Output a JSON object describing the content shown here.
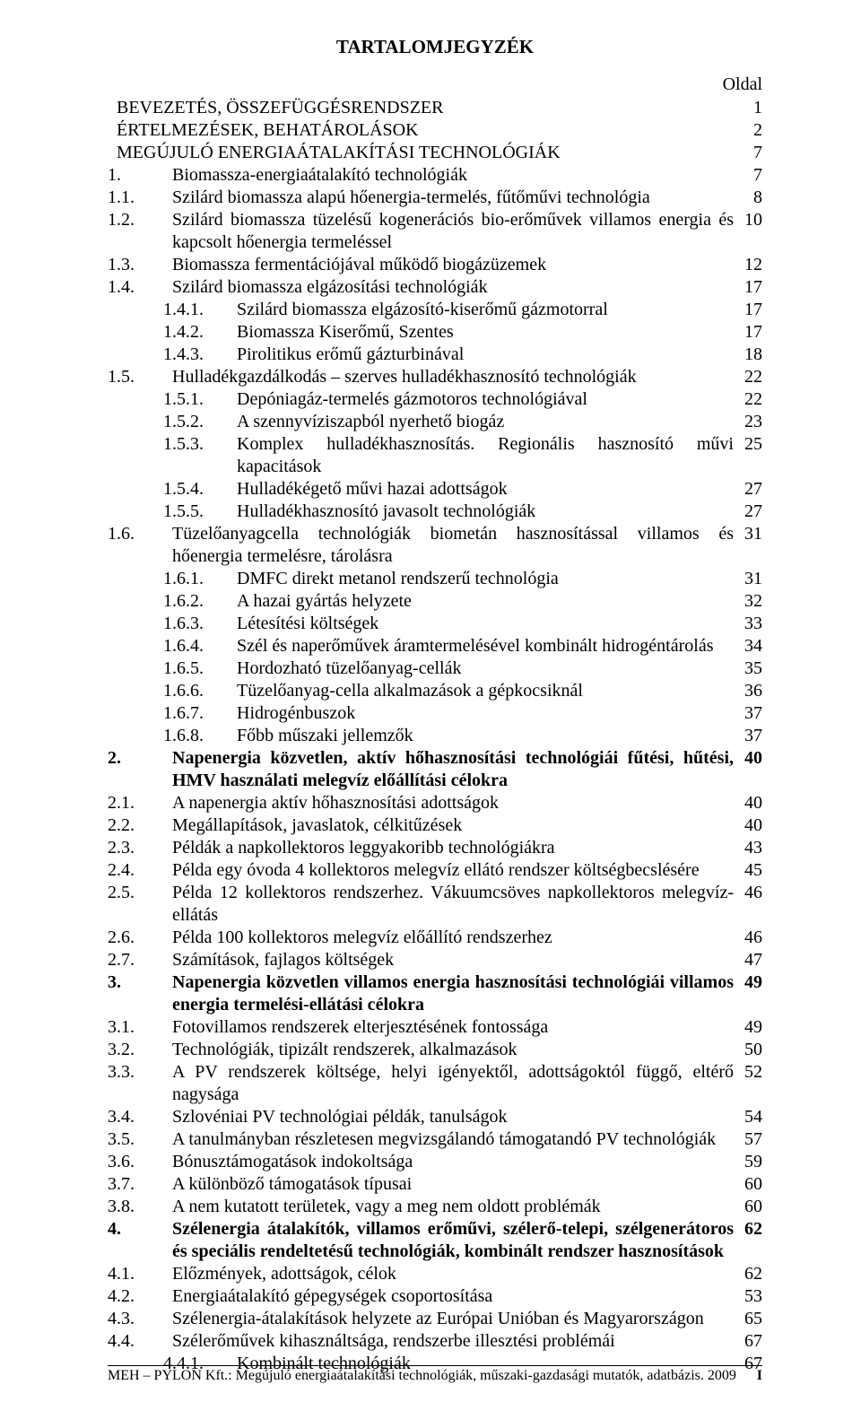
{
  "title": "TARTALOMJEGYZÉK",
  "page_header_label": "Oldal",
  "footer_left": "MEH – PYLON Kft.: Megújuló energiaátalakítási technológiák, műszaki-gazdasági mutatók, adatbázis. 2009",
  "footer_right": "I",
  "entries": [
    {
      "num": "",
      "text": "BEVEZETÉS, ÖSSZEFÜGGÉSRENDSZER",
      "page": "1",
      "indent": 0,
      "bold": false
    },
    {
      "num": "",
      "text": "ÉRTELMEZÉSEK, BEHATÁROLÁSOK",
      "page": "2",
      "indent": 0,
      "bold": false
    },
    {
      "num": "",
      "text": "MEGÚJULÓ ENERGIAÁTALAKÍTÁSI TECHNOLÓGIÁK",
      "page": "7",
      "indent": 0,
      "bold": false
    },
    {
      "num": "1.",
      "text": "Biomassza-energiaátalakító technológiák",
      "page": "7",
      "indent": 1,
      "bold": false
    },
    {
      "num": "1.1.",
      "text": "Szilárd biomassza alapú hőenergia-termelés, fűtőművi technológia",
      "page": "8",
      "indent": 1,
      "bold": false
    },
    {
      "num": "1.2.",
      "text": "Szilárd biomassza tüzelésű kogenerációs bio-erőművek villamos energia és kapcsolt hőener­gia termeléssel",
      "page": "10",
      "indent": 1,
      "bold": false
    },
    {
      "num": "1.3.",
      "text": "Biomassza fermentációjával működő biogázüzemek",
      "page": "12",
      "indent": 1,
      "bold": false
    },
    {
      "num": "1.4.",
      "text": "Szilárd biomassza elgázosítási technológiák",
      "page": "17",
      "indent": 1,
      "bold": false
    },
    {
      "num": "1.4.1.",
      "text": "Szilárd biomassza elgázosító-kiserőmű gázmotorral",
      "page": "17",
      "indent": 2,
      "bold": false
    },
    {
      "num": "1.4.2.",
      "text": "Biomassza Kiserőmű, Szentes",
      "page": "17",
      "indent": 2,
      "bold": false
    },
    {
      "num": "1.4.3.",
      "text": "Pirolitikus erőmű gázturbinával",
      "page": "18",
      "indent": 2,
      "bold": false
    },
    {
      "num": "1.5.",
      "text": "Hulladékgazdálkodás – szerves hulladékhasznosító technológiák",
      "page": "22",
      "indent": 1,
      "bold": false
    },
    {
      "num": "1.5.1.",
      "text": "Depóniagáz-termelés gázmotoros technológiával",
      "page": "22",
      "indent": 2,
      "bold": false
    },
    {
      "num": "1.5.2.",
      "text": "A szennyvíziszapból nyerhető biogáz",
      "page": "23",
      "indent": 2,
      "bold": false
    },
    {
      "num": "1.5.3.",
      "text": "Komplex hulladékhasznosítás. Regionális hasznosító művi kapacitások",
      "page": "25",
      "indent": 2,
      "bold": false
    },
    {
      "num": "1.5.4.",
      "text": "Hulladékégető művi hazai adottságok",
      "page": "27",
      "indent": 2,
      "bold": false
    },
    {
      "num": "1.5.5.",
      "text": "Hulladékhasznosító javasolt technológiák",
      "page": "27",
      "indent": 2,
      "bold": false
    },
    {
      "num": "1.6.",
      "text": "Tüzelőanyagcella technológiák biometán hasznosítással villamos és hőenergia termelésre, tárolásra",
      "page": "31",
      "indent": 1,
      "bold": false
    },
    {
      "num": "1.6.1.",
      "text": "DMFC direkt metanol rendszerű technológia",
      "page": "31",
      "indent": 2,
      "bold": false
    },
    {
      "num": "1.6.2.",
      "text": "A hazai gyártás helyzete",
      "page": "32",
      "indent": 2,
      "bold": false
    },
    {
      "num": "1.6.3.",
      "text": "Létesítési költségek",
      "page": "33",
      "indent": 2,
      "bold": false
    },
    {
      "num": "1.6.4.",
      "text": "Szél és naperőművek áramtermelésével kombinált hidrogéntárolás",
      "page": "34",
      "indent": 2,
      "bold": false
    },
    {
      "num": "1.6.5.",
      "text": "Hordozható tüzelőanyag-cellák",
      "page": "35",
      "indent": 2,
      "bold": false
    },
    {
      "num": "1.6.6.",
      "text": "Tüzelőanyag-cella alkalmazások a gépkocsiknál",
      "page": "36",
      "indent": 2,
      "bold": false
    },
    {
      "num": "1.6.7.",
      "text": "Hidrogénbuszok",
      "page": "37",
      "indent": 2,
      "bold": false
    },
    {
      "num": "1.6.8.",
      "text": "Főbb műszaki jellemzők",
      "page": "37",
      "indent": 2,
      "bold": false
    },
    {
      "num": "2.",
      "text": "Napenergia közvetlen, aktív hőhasznosítási technológiái fűtési, hűtési, HMV használati melegvíz előállítási célokra",
      "page": "40",
      "indent": 1,
      "bold": true
    },
    {
      "num": "2.1.",
      "text": "A napenergia aktív hőhasznosítási adottságok",
      "page": "40",
      "indent": 1,
      "bold": false
    },
    {
      "num": "2.2.",
      "text": "Megállapítások, javaslatok, célkitűzések",
      "page": "40",
      "indent": 1,
      "bold": false
    },
    {
      "num": "2.3.",
      "text": "Példák a napkollektoros leggyakoribb technológiákra",
      "page": "43",
      "indent": 1,
      "bold": false
    },
    {
      "num": "2.4.",
      "text": "Példa egy óvoda 4 kollektoros melegvíz ellátó rendszer költségbecslésére",
      "page": "45",
      "indent": 1,
      "bold": false
    },
    {
      "num": "2.5.",
      "text": "Példa 12 kollektoros rendszerhez. Vákuumcsöves napkollektoros melegvíz-ellátás",
      "page": "46",
      "indent": 1,
      "bold": false
    },
    {
      "num": "2.6.",
      "text": "Példa 100 kollektoros melegvíz előállító rendszerhez",
      "page": "46",
      "indent": 1,
      "bold": false
    },
    {
      "num": "2.7.",
      "text": "Számítások, fajlagos költségek",
      "page": "47",
      "indent": 1,
      "bold": false
    },
    {
      "num": "3.",
      "text": "Napenergia közvetlen villamos energia hasznosítási technológiái villamos energia terme­lési-ellátási célokra",
      "page": "49",
      "indent": 1,
      "bold": true
    },
    {
      "num": "3.1.",
      "text": "Fotovillamos rendszerek elterjesztésének fontossága",
      "page": "49",
      "indent": 1,
      "bold": false
    },
    {
      "num": "3.2.",
      "text": "Technológiák, tipizált rendszerek, alkalmazások",
      "page": "50",
      "indent": 1,
      "bold": false
    },
    {
      "num": "3.3.",
      "text": "A PV rendszerek költsége, helyi igényektől, adottságoktól függő, eltérő nagysága",
      "page": "52",
      "indent": 1,
      "bold": false
    },
    {
      "num": "3.4.",
      "text": "Szlovéniai PV technológiai példák, tanulságok",
      "page": "54",
      "indent": 1,
      "bold": false
    },
    {
      "num": "3.5.",
      "text": "A tanulmányban részletesen megvizsgálandó támogatandó PV technológiák",
      "page": "57",
      "indent": 1,
      "bold": false
    },
    {
      "num": "3.6.",
      "text": "Bónusztámogatások indokoltsága",
      "page": "59",
      "indent": 1,
      "bold": false
    },
    {
      "num": "3.7.",
      "text": "A különböző támogatások típusai",
      "page": "60",
      "indent": 1,
      "bold": false
    },
    {
      "num": "3.8.",
      "text": "A nem kutatott területek, vagy a meg nem oldott problémák",
      "page": "60",
      "indent": 1,
      "bold": false
    },
    {
      "num": "4.",
      "text": "Szélenergia átalakítók, villamos erőművi, szélerő-telepi, szélgenerátoros és speciális rendeltetésű technológiák, kombinált rendszer hasznosítások",
      "page": "62",
      "indent": 1,
      "bold": true
    },
    {
      "num": "4.1.",
      "text": "Előzmények, adottságok, célok",
      "page": "62",
      "indent": 1,
      "bold": false
    },
    {
      "num": "4.2.",
      "text": "Energiaátalakító gépegységek csoportosítása",
      "page": "53",
      "indent": 1,
      "bold": false
    },
    {
      "num": "4.3.",
      "text": "Szélenergia-átalakítások helyzete az Európai Unióban és Magyarországon",
      "page": "65",
      "indent": 1,
      "bold": false
    },
    {
      "num": "4.4.",
      "text": "Szélerőművek kihasználtsága, rendszerbe illesztési problémái",
      "page": "67",
      "indent": 1,
      "bold": false
    },
    {
      "num": "4.4.1.",
      "text": "Kombinált technológiák",
      "page": "67",
      "indent": 2,
      "bold": false
    }
  ]
}
